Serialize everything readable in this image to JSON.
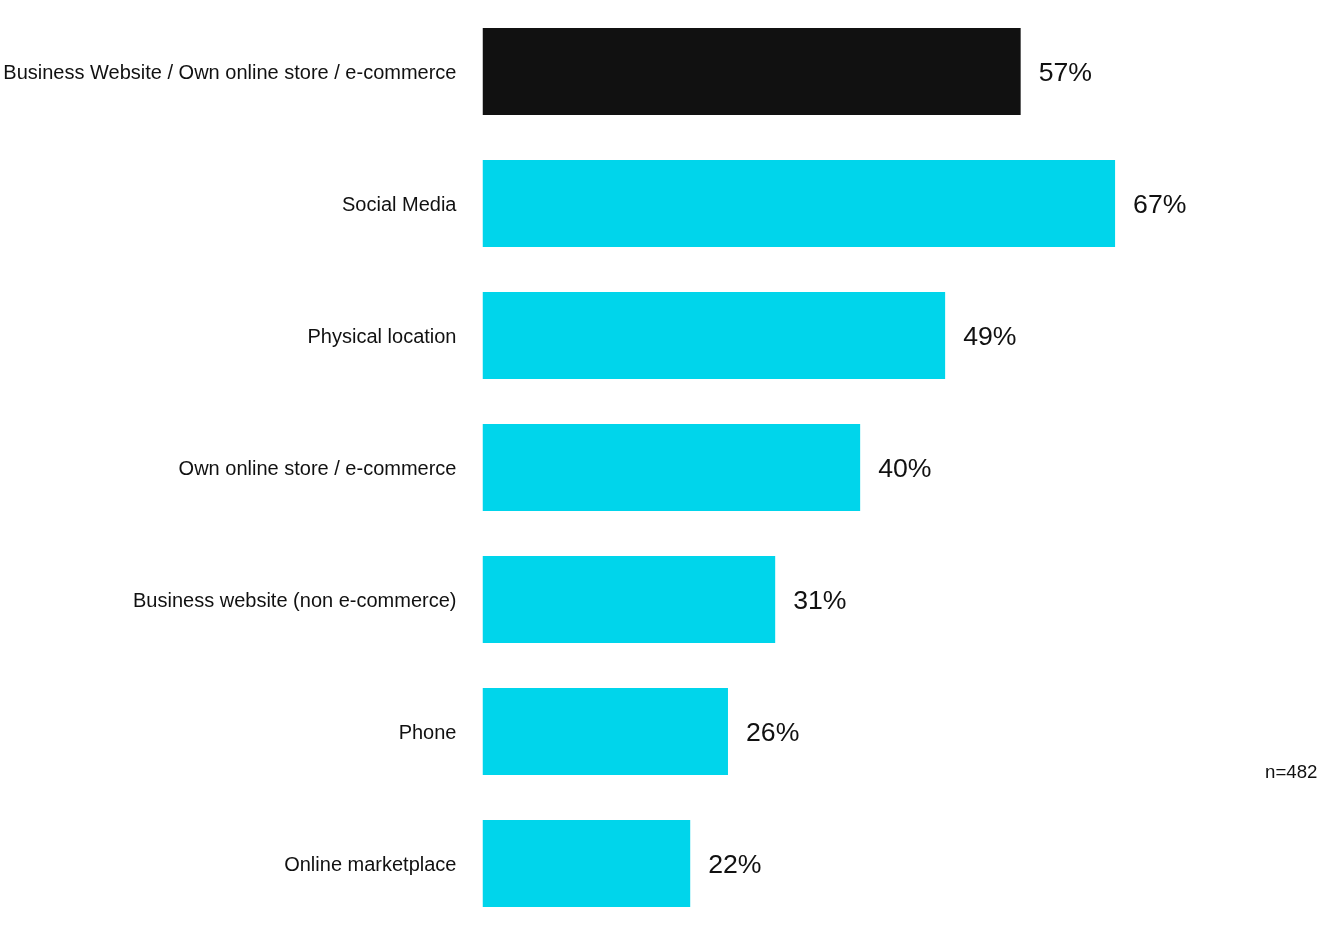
{
  "chart_data": {
    "type": "bar",
    "orientation": "horizontal",
    "categories": [
      "Business Website / Own online store / e-commerce",
      "Social Media",
      "Physical location",
      "Own online store / e-commerce",
      "Business website (non e-commerce)",
      "Phone",
      "Online marketplace"
    ],
    "values": [
      57,
      67,
      49,
      40,
      31,
      26,
      22
    ],
    "colors": [
      "#111111",
      "#00d5eb",
      "#00d5eb",
      "#00d5eb",
      "#00d5eb",
      "#00d5eb",
      "#00d5eb"
    ],
    "value_labels": [
      "57%",
      "67%",
      "49%",
      "40%",
      "31%",
      "26%",
      "22%"
    ],
    "tick_labels": "y",
    "grid": false,
    "annotations": [
      "n=482"
    ]
  }
}
